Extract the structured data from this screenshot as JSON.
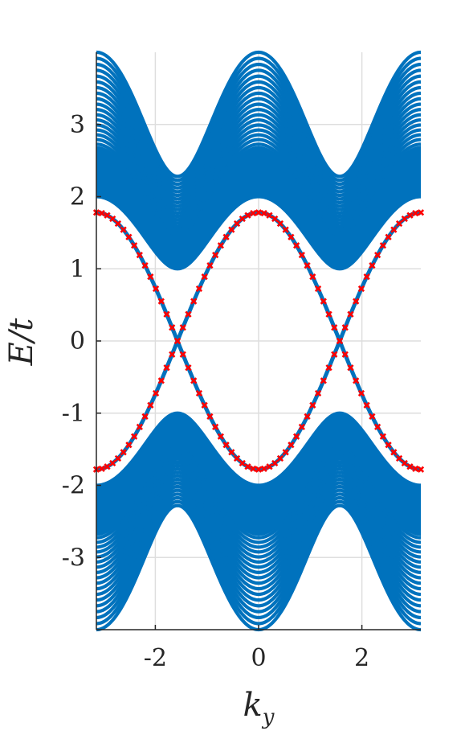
{
  "chart_data": {
    "type": "line",
    "title": "",
    "xlabel": "k_y",
    "ylabel": "E/t",
    "xlim": [
      -3.1416,
      3.1416
    ],
    "ylim": [
      -4,
      4
    ],
    "grid": true,
    "xticks": [
      -2,
      0,
      2
    ],
    "yticks": [
      -3,
      -2,
      -1,
      0,
      1,
      2,
      3
    ],
    "xtick_labels": [
      "-2",
      "0",
      "2"
    ],
    "ytick_labels": [
      "-3",
      "-2",
      "-1",
      "0",
      "1",
      "2",
      "3"
    ],
    "bulk_bands": {
      "description_of_values": "band edges E(k_y) = ±sqrt(1.25 + cos(2k_y) ± 2.75) approx; bulk bands fill between",
      "upper_band_top": [
        [
          -3.1416,
          4.0
        ],
        [
          -1.5708,
          2.28
        ],
        [
          0,
          4.0
        ],
        [
          1.5708,
          2.28
        ],
        [
          3.1416,
          4.0
        ]
      ],
      "upper_band_bottom": [
        [
          -3.1416,
          2.0
        ],
        [
          -1.5708,
          1.0
        ],
        [
          0,
          2.0
        ],
        [
          1.5708,
          1.0
        ],
        [
          3.1416,
          2.0
        ]
      ],
      "lower_band_top": [
        [
          -3.1416,
          -2.0
        ],
        [
          -1.5708,
          -1.0
        ],
        [
          0,
          -2.0
        ],
        [
          1.5708,
          -1.0
        ],
        [
          3.1416,
          -2.0
        ]
      ],
      "lower_band_bottom": [
        [
          -3.1416,
          -4.0
        ],
        [
          -1.5708,
          -2.28
        ],
        [
          0,
          -4.0
        ],
        [
          1.5708,
          -2.28
        ],
        [
          3.1416,
          -4.0
        ]
      ],
      "color": "#0072BD"
    },
    "edge_states": {
      "amplitude": 1.78,
      "forms": [
        "1.78*cos(k_y)",
        "-1.78*cos(k_y)"
      ],
      "line_color": "#0072BD",
      "marker_color": "#FF0000",
      "marker": "x"
    }
  }
}
